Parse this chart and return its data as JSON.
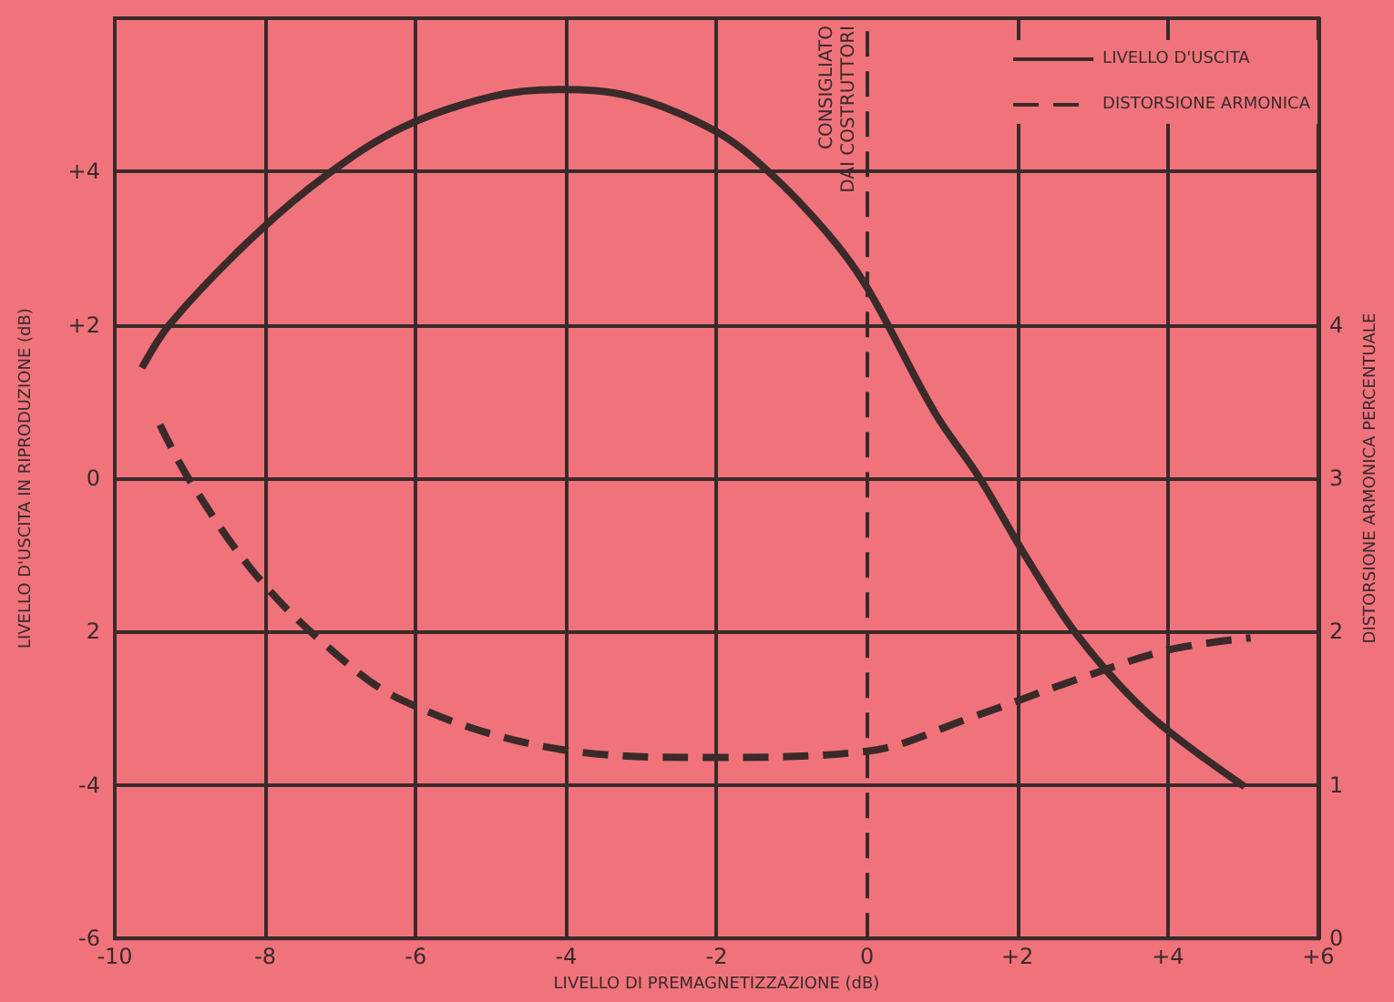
{
  "chart_data": {
    "type": "line",
    "xlabel": "LIVELLO DI PREMAGNETIZZAZIONE (dB)",
    "ylabel": "LIVELLO D'USCITA IN RIPRODUZIONE (dB)",
    "y2label": "DISTORSIONE ARMONICA PERCENTUALE",
    "xlim": [
      -10,
      6
    ],
    "xticks": [
      {
        "value": -10,
        "label": "-10"
      },
      {
        "value": -8,
        "label": "-8"
      },
      {
        "value": -6,
        "label": "-6"
      },
      {
        "value": -4,
        "label": "-4"
      },
      {
        "value": -2,
        "label": "-2"
      },
      {
        "value": 0,
        "label": "0"
      },
      {
        "value": 2,
        "label": "+2"
      },
      {
        "value": 4,
        "label": "+4"
      },
      {
        "value": 6,
        "label": "+6"
      }
    ],
    "ylim": [
      -6,
      6
    ],
    "yticks": [
      {
        "value": -6,
        "label": "-6"
      },
      {
        "value": -4,
        "label": "-4"
      },
      {
        "value": -2,
        "label": "2"
      },
      {
        "value": 0,
        "label": "0"
      },
      {
        "value": 2,
        "label": "+2"
      },
      {
        "value": 4,
        "label": "+4"
      },
      {
        "value": 6,
        "label": null
      }
    ],
    "y2lim": [
      0,
      6
    ],
    "y2ticks": [
      0,
      1,
      2,
      3,
      4
    ],
    "grid": true,
    "legend": "top right",
    "marker": "none",
    "ref_lines": [
      {
        "axis": "x",
        "value": 0,
        "label": "CONSIGLIATO\nDAI COSTRUTTORI",
        "line_style": "dashed",
        "color": "#3a2a2a"
      }
    ],
    "series": [
      {
        "name": "LIVELLO D'USCITA",
        "color": "#3a2a2a",
        "line_style": "solid",
        "x": [
          -9.64,
          -9.26,
          -8.19,
          -7.19,
          -6.17,
          -4.98,
          -4.1,
          -3.14,
          -2.02,
          -1.31,
          -0.52,
          0,
          0.9,
          1.5,
          2.1,
          2.8,
          3.76,
          5.02
        ],
        "values": [
          1.44,
          2.02,
          3.12,
          3.95,
          4.58,
          4.98,
          5.07,
          4.98,
          4.53,
          4.0,
          3.19,
          2.49,
          0.86,
          0,
          -1.0,
          -2.05,
          -3.09,
          -4.02
        ]
      },
      {
        "name": "DISTORSIONE ARMONICA",
        "color": "#3a2a2a",
        "line_style": "dashed",
        "axis": "y2",
        "x": [
          -9.4,
          -9.02,
          -8.19,
          -7.26,
          -6.17,
          -4.17,
          -2.12,
          0,
          1.38,
          2.8,
          4.0,
          5.1
        ],
        "values": [
          3.35,
          3.0,
          2.41,
          1.94,
          1.55,
          1.24,
          1.18,
          1.22,
          1.44,
          1.69,
          1.88,
          1.96
        ]
      }
    ]
  }
}
